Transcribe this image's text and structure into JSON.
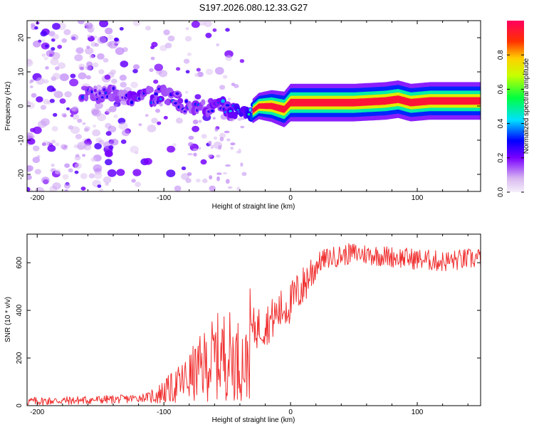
{
  "title": "S197.2026.080.12.33.G27",
  "chart_data": [
    {
      "type": "heatmap",
      "name": "spectrogram",
      "xlabel": "Height of straight line (km)",
      "ylabel": "Frequency (Hz)",
      "xlim": [
        -208,
        150
      ],
      "ylim": [
        -25,
        25
      ],
      "xticks": [
        -200,
        -100,
        0,
        100
      ],
      "yticks": [
        20,
        10,
        0,
        -10,
        -20
      ],
      "colorbar": {
        "label": "Normalized spectral amplitude",
        "range": [
          0.0,
          1.0
        ],
        "ticks": [
          0.0,
          0.2,
          0.4,
          0.6,
          0.8
        ]
      },
      "dominant_frequency_track": [
        {
          "x": -165,
          "f": 4,
          "amp": 0.3
        },
        {
          "x": -150,
          "f": 4,
          "amp": 0.3
        },
        {
          "x": -130,
          "f": 3,
          "amp": 0.3
        },
        {
          "x": -115,
          "f": 3,
          "amp": 0.35
        },
        {
          "x": -100,
          "f": 3,
          "amp": 0.35
        },
        {
          "x": -90,
          "f": 2,
          "amp": 0.3
        },
        {
          "x": -80,
          "f": -1,
          "amp": 0.3
        },
        {
          "x": -70,
          "f": -1,
          "amp": 0.3
        },
        {
          "x": -60,
          "f": 0,
          "amp": 0.35
        },
        {
          "x": -50,
          "f": 0,
          "amp": 0.4
        },
        {
          "x": -40,
          "f": -3,
          "amp": 0.45
        },
        {
          "x": -35,
          "f": -3,
          "amp": 0.5
        },
        {
          "x": -25,
          "f": 0,
          "amp": 0.6
        },
        {
          "x": -15,
          "f": 0,
          "amp": 0.75
        },
        {
          "x": -5,
          "f": -1,
          "amp": 0.85
        },
        {
          "x": 0,
          "f": 1,
          "amp": 0.9
        },
        {
          "x": 5,
          "f": 1,
          "amp": 0.95
        },
        {
          "x": 50,
          "f": 1,
          "amp": 0.95
        },
        {
          "x": 75,
          "f": 1.5,
          "amp": 0.95
        },
        {
          "x": 85,
          "f": 2,
          "amp": 0.95
        },
        {
          "x": 95,
          "f": 1,
          "amp": 0.9
        },
        {
          "x": 110,
          "f": 1.5,
          "amp": 0.95
        },
        {
          "x": 150,
          "f": 1.5,
          "amp": 0.95
        }
      ]
    },
    {
      "type": "line",
      "name": "snr",
      "xlabel": "Height of straight line (km)",
      "ylabel": "SNR (10 * v/v)",
      "xlim": [
        -208,
        150
      ],
      "ylim": [
        0,
        720
      ],
      "xticks": [
        -200,
        -100,
        0,
        100
      ],
      "yticks": [
        0,
        200,
        400,
        600
      ],
      "series": [
        {
          "name": "SNR",
          "color": "#f03030",
          "x": [
            -208,
            -190,
            -170,
            -150,
            -130,
            -115,
            -105,
            -100,
            -95,
            -90,
            -85,
            -80,
            -75,
            -70,
            -65,
            -60,
            -55,
            -50,
            -45,
            -40,
            -35,
            -30,
            -25,
            -20,
            -15,
            -10,
            -5,
            0,
            5,
            10,
            15,
            20,
            25,
            30,
            40,
            50,
            60,
            70,
            80,
            90,
            100,
            110,
            120,
            130,
            140,
            150
          ],
          "values": [
            18,
            20,
            22,
            25,
            28,
            35,
            45,
            60,
            70,
            85,
            100,
            120,
            140,
            160,
            180,
            200,
            210,
            220,
            200,
            190,
            170,
            320,
            330,
            340,
            360,
            390,
            410,
            430,
            470,
            500,
            550,
            590,
            610,
            620,
            630,
            640,
            635,
            630,
            625,
            620,
            615,
            610,
            605,
            610,
            615,
            620
          ]
        }
      ]
    }
  ]
}
